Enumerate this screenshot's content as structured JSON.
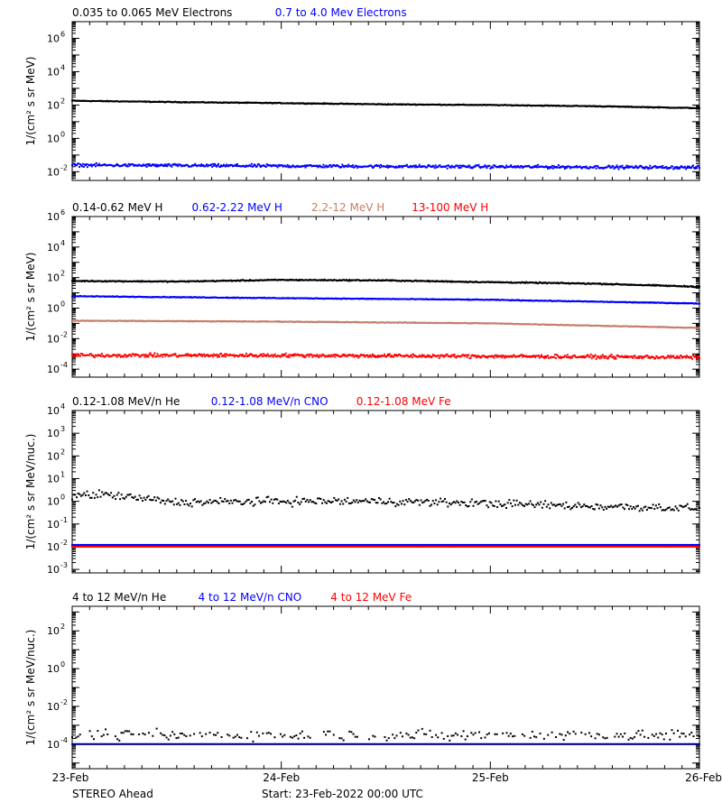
{
  "footer": {
    "observatory": "STEREO Ahead",
    "start": "Start: 23-Feb-2022 00:00 UTC"
  },
  "x_ticks": [
    "23-Feb",
    "24-Feb",
    "25-Feb",
    "26-Feb"
  ],
  "chart_data": [
    {
      "type": "scatter",
      "panel": "electrons",
      "title_entries": [
        {
          "text": "0.035 to 0.065 MeV Electrons",
          "color": "#000000"
        },
        {
          "text": "0.7 to 4.0 Mev Electrons",
          "color": "#0000ff"
        }
      ],
      "ylabel": "1/(cm² s sr MeV)",
      "yscale": "log",
      "ylim": [
        0.003,
        10000000
      ],
      "y_tick_labels": [
        {
          "base": "10",
          "exp": "6",
          "value": 1000000
        },
        {
          "base": "10",
          "exp": "4",
          "value": 10000
        },
        {
          "base": "10",
          "exp": "2",
          "value": 100
        },
        {
          "base": "10",
          "exp": "0",
          "value": 1
        },
        {
          "base": "10",
          "exp": "-2",
          "value": 0.01
        }
      ],
      "x_range_days": [
        0,
        3
      ],
      "series": [
        {
          "name": "0.035 to 0.065 MeV Electrons",
          "color": "#000000",
          "x": [
            0,
            0.5,
            1,
            1.5,
            2,
            2.5,
            3
          ],
          "y": [
            180,
            150,
            130,
            110,
            100,
            85,
            65
          ],
          "noise": 0.02,
          "style": "dense"
        },
        {
          "name": "0.7 to 4.0 Mev Electrons",
          "color": "#0000ff",
          "x": [
            0,
            1,
            2,
            3
          ],
          "y": [
            0.025,
            0.022,
            0.02,
            0.018
          ],
          "noise": 0.08,
          "style": "dense"
        }
      ]
    },
    {
      "type": "scatter",
      "panel": "protons",
      "title_entries": [
        {
          "text": "0.14-0.62 MeV H",
          "color": "#000000"
        },
        {
          "text": "0.62-2.22 MeV H",
          "color": "#0000ff"
        },
        {
          "text": "2.2-12 MeV H",
          "color": "#c47f6a"
        },
        {
          "text": "13-100 MeV H",
          "color": "#ff0000"
        }
      ],
      "ylabel": "1/(cm² s sr MeV)",
      "yscale": "log",
      "ylim": [
        3e-05,
        1000000
      ],
      "y_tick_labels": [
        {
          "base": "10",
          "exp": "6",
          "value": 1000000
        },
        {
          "base": "10",
          "exp": "4",
          "value": 10000
        },
        {
          "base": "10",
          "exp": "2",
          "value": 100
        },
        {
          "base": "10",
          "exp": "0",
          "value": 1
        },
        {
          "base": "10",
          "exp": "-2",
          "value": 0.01
        },
        {
          "base": "10",
          "exp": "-4",
          "value": 0.0001
        }
      ],
      "x_range_days": [
        0,
        3
      ],
      "series": [
        {
          "name": "0.14-0.62 MeV H",
          "color": "#000000",
          "x": [
            0,
            0.5,
            1,
            1.5,
            2,
            2.5,
            3
          ],
          "y": [
            60,
            55,
            70,
            65,
            50,
            40,
            25
          ],
          "noise": 0.03,
          "style": "dense"
        },
        {
          "name": "0.62-2.22 MeV H",
          "color": "#0000ff",
          "x": [
            0,
            1,
            2,
            3
          ],
          "y": [
            6,
            4.5,
            3.5,
            2
          ],
          "noise": 0.02,
          "style": "dense"
        },
        {
          "name": "2.2-12 MeV H",
          "color": "#c47f6a",
          "x": [
            0,
            1,
            2,
            3
          ],
          "y": [
            0.15,
            0.13,
            0.1,
            0.05
          ],
          "noise": 0.02,
          "style": "dense"
        },
        {
          "name": "13-100 MeV H",
          "color": "#ff0000",
          "x": [
            0,
            1,
            2,
            3
          ],
          "y": [
            0.0008,
            0.0008,
            0.0007,
            0.0006
          ],
          "noise": 0.1,
          "style": "dense"
        }
      ]
    },
    {
      "type": "scatter",
      "panel": "heavy-low",
      "title_entries": [
        {
          "text": "0.12-1.08 MeV/n He",
          "color": "#000000"
        },
        {
          "text": "0.12-1.08 MeV/n CNO",
          "color": "#0000ff"
        },
        {
          "text": "0.12-1.08 MeV Fe",
          "color": "#ff0000"
        }
      ],
      "ylabel": "1/(cm² s sr MeV/nuc.)",
      "yscale": "log",
      "ylim": [
        0.0007,
        10000
      ],
      "y_tick_labels": [
        {
          "base": "10",
          "exp": "4",
          "value": 10000
        },
        {
          "base": "10",
          "exp": "3",
          "value": 1000
        },
        {
          "base": "10",
          "exp": "2",
          "value": 100
        },
        {
          "base": "10",
          "exp": "1",
          "value": 10
        },
        {
          "base": "10",
          "exp": "0",
          "value": 1
        },
        {
          "base": "10",
          "exp": "-1",
          "value": 0.1
        },
        {
          "base": "10",
          "exp": "-2",
          "value": 0.01
        },
        {
          "base": "10",
          "exp": "-3",
          "value": 0.001
        }
      ],
      "x_range_days": [
        0,
        3
      ],
      "series": [
        {
          "name": "0.12-1.08 MeV/n He",
          "color": "#000000",
          "x": [
            0,
            0.15,
            0.5,
            1,
            1.5,
            2,
            2.5,
            3
          ],
          "y": [
            1.8,
            2.0,
            0.9,
            1.0,
            1.0,
            0.8,
            0.6,
            0.5
          ],
          "noise": 0.15,
          "style": "sparse"
        },
        {
          "name": "0.12-1.08 MeV/n CNO",
          "color": "#0000ff",
          "x": [
            0,
            3
          ],
          "y": [
            0.012,
            0.012
          ],
          "noise": 0.0,
          "style": "line-dots"
        },
        {
          "name": "0.12-1.08 MeV Fe",
          "color": "#ff0000",
          "x": [
            0,
            3
          ],
          "y": [
            0.01,
            0.01
          ],
          "noise": 0.0,
          "style": "line-dots"
        }
      ]
    },
    {
      "type": "scatter",
      "panel": "heavy-high",
      "title_entries": [
        {
          "text": "4 to 12 MeV/n He",
          "color": "#000000"
        },
        {
          "text": "4 to 12 MeV/n CNO",
          "color": "#0000ff"
        },
        {
          "text": "4 to 12 MeV Fe",
          "color": "#ff0000"
        }
      ],
      "ylabel": "1/(cm² s sr MeV/nuc.)",
      "yscale": "log",
      "ylim": [
        5e-06,
        2000
      ],
      "y_tick_labels": [
        {
          "base": "10",
          "exp": "2",
          "value": 100
        },
        {
          "base": "10",
          "exp": "0",
          "value": 1
        },
        {
          "base": "10",
          "exp": "-2",
          "value": 0.01
        },
        {
          "base": "10",
          "exp": "-4",
          "value": 0.0001
        }
      ],
      "x_range_days": [
        0,
        3
      ],
      "series": [
        {
          "name": "4 to 12 MeV/n He",
          "color": "#000000",
          "x": [
            0,
            3
          ],
          "y": [
            0.0003,
            0.0003
          ],
          "noise": 0.25,
          "style": "sparse-low"
        },
        {
          "name": "4 to 12 MeV/n CNO",
          "color": "#0000ff",
          "x": [
            0,
            3
          ],
          "y": [
            0.0001,
            0.0001
          ],
          "noise": 0.0,
          "style": "line-dots"
        }
      ]
    }
  ]
}
